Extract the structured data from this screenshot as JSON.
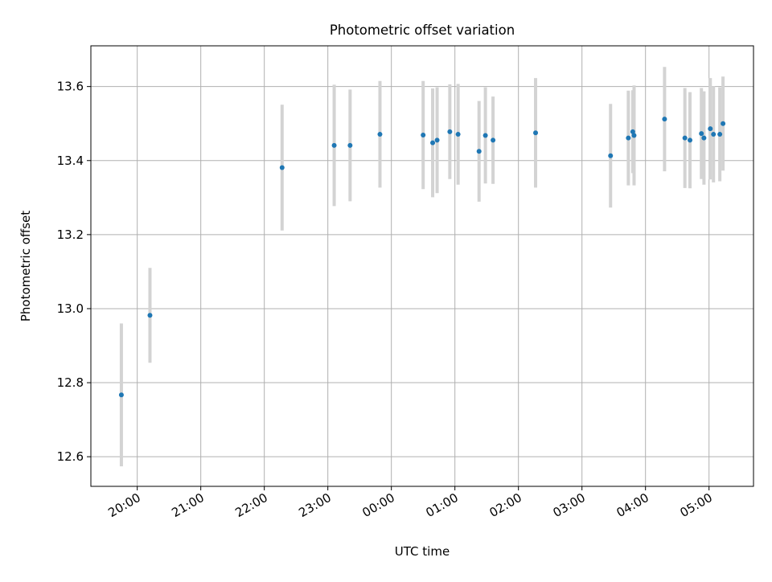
{
  "chart_data": {
    "type": "scatter",
    "title": "Photometric offset variation",
    "xlabel": "UTC time",
    "ylabel": "Photometric offset",
    "x_tick_labels": [
      "20:00",
      "21:00",
      "22:00",
      "23:00",
      "00:00",
      "01:00",
      "02:00",
      "03:00",
      "04:00",
      "05:00"
    ],
    "x_tick_values": [
      20,
      21,
      22,
      23,
      24,
      25,
      26,
      27,
      28,
      29
    ],
    "xlim": [
      19.27,
      29.7
    ],
    "y_tick_labels": [
      "12.6",
      "12.8",
      "13.0",
      "13.2",
      "13.4",
      "13.6"
    ],
    "y_tick_values": [
      12.6,
      12.8,
      13.0,
      13.2,
      13.4,
      13.6
    ],
    "ylim": [
      12.52,
      13.71
    ],
    "grid": true,
    "colors": {
      "point": "#1f77b4",
      "errorbar": "#d3d3d3",
      "grid": "#b0b0b0"
    },
    "points": [
      {
        "t": 19.75,
        "y": 12.767,
        "err": 0.193
      },
      {
        "t": 20.2,
        "y": 12.982,
        "err": 0.128
      },
      {
        "t": 22.28,
        "y": 13.381,
        "err": 0.17
      },
      {
        "t": 23.1,
        "y": 13.441,
        "err": 0.164
      },
      {
        "t": 23.35,
        "y": 13.441,
        "err": 0.151
      },
      {
        "t": 23.82,
        "y": 13.471,
        "err": 0.144
      },
      {
        "t": 24.5,
        "y": 13.469,
        "err": 0.146
      },
      {
        "t": 24.65,
        "y": 13.448,
        "err": 0.147
      },
      {
        "t": 24.72,
        "y": 13.455,
        "err": 0.143
      },
      {
        "t": 24.92,
        "y": 13.478,
        "err": 0.128
      },
      {
        "t": 25.05,
        "y": 13.471,
        "err": 0.136
      },
      {
        "t": 25.38,
        "y": 13.425,
        "err": 0.136
      },
      {
        "t": 25.48,
        "y": 13.468,
        "err": 0.13
      },
      {
        "t": 25.6,
        "y": 13.455,
        "err": 0.118
      },
      {
        "t": 26.27,
        "y": 13.475,
        "err": 0.148
      },
      {
        "t": 27.45,
        "y": 13.413,
        "err": 0.14
      },
      {
        "t": 27.73,
        "y": 13.461,
        "err": 0.128
      },
      {
        "t": 27.8,
        "y": 13.478,
        "err": 0.112
      },
      {
        "t": 27.82,
        "y": 13.468,
        "err": 0.135
      },
      {
        "t": 28.3,
        "y": 13.512,
        "err": 0.141
      },
      {
        "t": 28.62,
        "y": 13.461,
        "err": 0.135
      },
      {
        "t": 28.7,
        "y": 13.455,
        "err": 0.13
      },
      {
        "t": 28.88,
        "y": 13.473,
        "err": 0.123
      },
      {
        "t": 28.92,
        "y": 13.461,
        "err": 0.126
      },
      {
        "t": 29.02,
        "y": 13.486,
        "err": 0.137
      },
      {
        "t": 29.07,
        "y": 13.471,
        "err": 0.13
      },
      {
        "t": 29.17,
        "y": 13.471,
        "err": 0.127
      },
      {
        "t": 29.22,
        "y": 13.5,
        "err": 0.127
      }
    ]
  }
}
